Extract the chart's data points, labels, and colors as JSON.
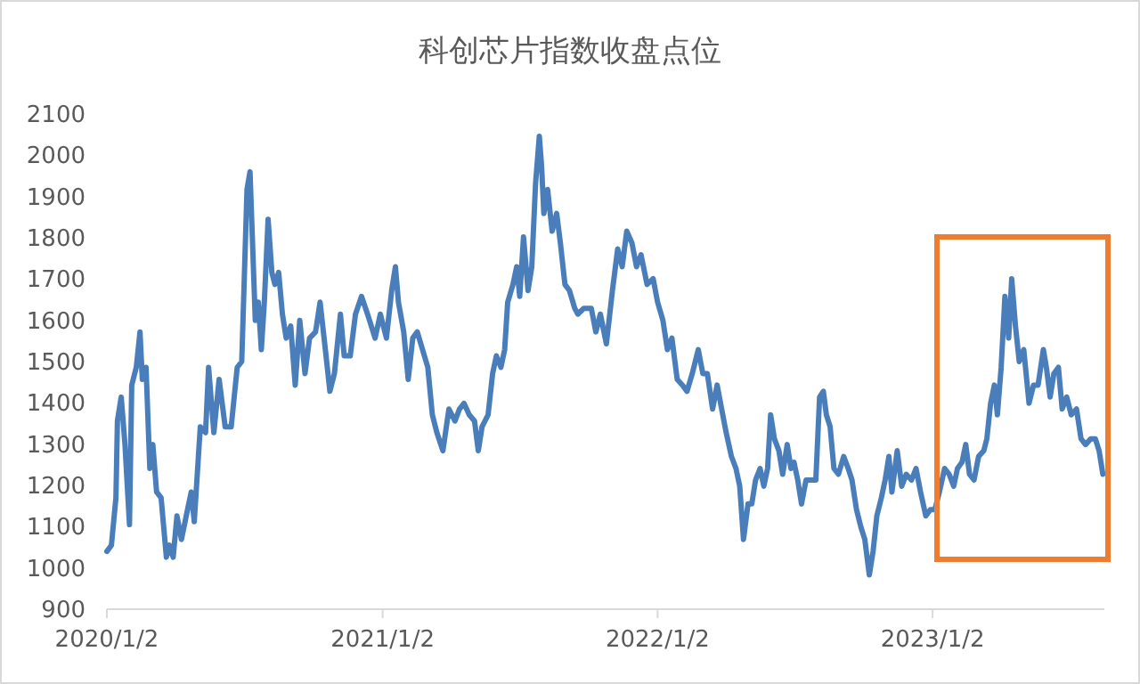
{
  "chart_data": {
    "type": "line",
    "title": "科创芯片指数收盘点位",
    "x": [
      "2020-01-02",
      "2020-01-08",
      "2020-01-14",
      "2020-01-16",
      "2020-01-21",
      "2020-01-26",
      "2020-02-01",
      "2020-02-04",
      "2020-02-10",
      "2020-02-15",
      "2020-02-18",
      "2020-02-23",
      "2020-02-28",
      "2020-03-03",
      "2020-03-08",
      "2020-03-14",
      "2020-03-21",
      "2020-03-25",
      "2020-03-30",
      "2020-04-04",
      "2020-04-10",
      "2020-04-18",
      "2020-04-23",
      "2020-04-27",
      "2020-05-05",
      "2020-05-12",
      "2020-05-16",
      "2020-05-23",
      "2020-05-30",
      "2020-06-07",
      "2020-06-15",
      "2020-06-23",
      "2020-06-29",
      "2020-07-06",
      "2020-07-10",
      "2020-07-17",
      "2020-07-21",
      "2020-07-25",
      "2020-07-29",
      "2020-08-03",
      "2020-08-08",
      "2020-08-12",
      "2020-08-17",
      "2020-08-22",
      "2020-08-27",
      "2020-09-02",
      "2020-09-08",
      "2020-09-14",
      "2020-09-21",
      "2020-09-27",
      "2020-10-05",
      "2020-10-11",
      "2020-10-18",
      "2020-10-24",
      "2020-10-30",
      "2020-11-07",
      "2020-11-12",
      "2020-11-20",
      "2020-11-27",
      "2020-12-05",
      "2020-12-13",
      "2020-12-23",
      "2020-12-30",
      "2021-01-07",
      "2021-01-14",
      "2021-01-19",
      "2021-01-23",
      "2021-01-30",
      "2021-02-05",
      "2021-02-11",
      "2021-02-17",
      "2021-02-24",
      "2021-03-03",
      "2021-03-09",
      "2021-03-15",
      "2021-03-23",
      "2021-03-31",
      "2021-04-08",
      "2021-04-14",
      "2021-04-20",
      "2021-04-27",
      "2021-05-04",
      "2021-05-09",
      "2021-05-14",
      "2021-05-22",
      "2021-05-28",
      "2021-06-02",
      "2021-06-08",
      "2021-06-13",
      "2021-06-17",
      "2021-06-24",
      "2021-06-29",
      "2021-07-03",
      "2021-07-08",
      "2021-07-14",
      "2021-07-19",
      "2021-07-24",
      "2021-07-29",
      "2021-08-01",
      "2021-08-04",
      "2021-08-09",
      "2021-08-15",
      "2021-08-21",
      "2021-08-26",
      "2021-09-01",
      "2021-09-07",
      "2021-09-14",
      "2021-09-18",
      "2021-09-26",
      "2021-10-06",
      "2021-10-12",
      "2021-10-18",
      "2021-10-26",
      "2021-11-03",
      "2021-11-10",
      "2021-11-16",
      "2021-11-22",
      "2021-11-29",
      "2021-12-05",
      "2021-12-11",
      "2021-12-19",
      "2021-12-27",
      "2022-01-02",
      "2022-01-09",
      "2022-01-15",
      "2022-01-21",
      "2022-01-28",
      "2022-02-04",
      "2022-02-10",
      "2022-02-17",
      "2022-02-25",
      "2022-03-03",
      "2022-03-09",
      "2022-03-16",
      "2022-03-22",
      "2022-03-28",
      "2022-04-03",
      "2022-04-10",
      "2022-04-16",
      "2022-04-21",
      "2022-04-26",
      "2022-05-02",
      "2022-05-07",
      "2022-05-12",
      "2022-05-18",
      "2022-05-23",
      "2022-05-28",
      "2022-06-01",
      "2022-06-06",
      "2022-06-12",
      "2022-06-17",
      "2022-06-23",
      "2022-06-28",
      "2022-07-02",
      "2022-07-07",
      "2022-07-12",
      "2022-07-18",
      "2022-07-25",
      "2022-07-31",
      "2022-08-05",
      "2022-08-10",
      "2022-08-14",
      "2022-08-19",
      "2022-08-24",
      "2022-08-30",
      "2022-09-06",
      "2022-09-12",
      "2022-09-17",
      "2022-09-23",
      "2022-09-29",
      "2022-10-04",
      "2022-10-10",
      "2022-10-15",
      "2022-10-20",
      "2022-10-26",
      "2022-10-31",
      "2022-11-05",
      "2022-11-09",
      "2022-11-16",
      "2022-11-22",
      "2022-11-28",
      "2022-12-05",
      "2022-12-11",
      "2022-12-17",
      "2022-12-24",
      "2022-12-30",
      "2023-01-05",
      "2023-01-11",
      "2023-01-18",
      "2023-01-24",
      "2023-01-30",
      "2023-02-04",
      "2023-02-10",
      "2023-02-15",
      "2023-02-20",
      "2023-02-26",
      "2023-03-04",
      "2023-03-11",
      "2023-03-15",
      "2023-03-20",
      "2023-03-25",
      "2023-03-29",
      "2023-04-03",
      "2023-04-08",
      "2023-04-13",
      "2023-04-17",
      "2023-04-22",
      "2023-04-27",
      "2023-05-03",
      "2023-05-10",
      "2023-05-16",
      "2023-05-22",
      "2023-05-29",
      "2023-06-02",
      "2023-06-07",
      "2023-06-12",
      "2023-06-18",
      "2023-06-23",
      "2023-06-29",
      "2023-07-05",
      "2023-07-12",
      "2023-07-18",
      "2023-07-24",
      "2023-07-31",
      "2023-08-06",
      "2023-08-11",
      "2023-08-16"
    ],
    "series": [
      {
        "color": "#4a7ebb",
        "values": [
          1040,
          1055,
          1170,
          1356,
          1414,
          1300,
          1105,
          1443,
          1486,
          1572,
          1457,
          1486,
          1241,
          1299,
          1184,
          1170,
          1026,
          1055,
          1026,
          1126,
          1069,
          1141,
          1184,
          1112,
          1342,
          1328,
          1486,
          1328,
          1457,
          1342,
          1342,
          1486,
          1500,
          1917,
          1960,
          1600,
          1644,
          1529,
          1644,
          1845,
          1716,
          1687,
          1716,
          1615,
          1557,
          1586,
          1443,
          1600,
          1471,
          1557,
          1572,
          1644,
          1529,
          1428,
          1471,
          1615,
          1514,
          1514,
          1615,
          1658,
          1615,
          1557,
          1615,
          1557,
          1672,
          1730,
          1644,
          1572,
          1457,
          1557,
          1572,
          1529,
          1486,
          1371,
          1328,
          1284,
          1385,
          1356,
          1385,
          1399,
          1371,
          1356,
          1284,
          1342,
          1371,
          1471,
          1514,
          1486,
          1529,
          1644,
          1687,
          1730,
          1658,
          1802,
          1672,
          1730,
          1931,
          2046,
          1974,
          1859,
          1917,
          1816,
          1859,
          1787,
          1687,
          1672,
          1629,
          1615,
          1629,
          1629,
          1572,
          1615,
          1543,
          1672,
          1773,
          1730,
          1816,
          1787,
          1730,
          1759,
          1687,
          1701,
          1644,
          1600,
          1529,
          1557,
          1457,
          1443,
          1428,
          1471,
          1529,
          1471,
          1471,
          1385,
          1443,
          1385,
          1328,
          1270,
          1241,
          1198,
          1069,
          1155,
          1155,
          1213,
          1241,
          1198,
          1241,
          1371,
          1313,
          1284,
          1227,
          1299,
          1241,
          1256,
          1213,
          1155,
          1213,
          1213,
          1213,
          1414,
          1428,
          1371,
          1342,
          1241,
          1227,
          1270,
          1241,
          1213,
          1141,
          1098,
          1069,
          983,
          1040,
          1126,
          1170,
          1213,
          1270,
          1184,
          1284,
          1198,
          1227,
          1213,
          1241,
          1184,
          1126,
          1141,
          1141,
          1184,
          1241,
          1227,
          1198,
          1241,
          1256,
          1299,
          1227,
          1213,
          1270,
          1284,
          1313,
          1399,
          1443,
          1371,
          1486,
          1658,
          1557,
          1701,
          1586,
          1500,
          1529,
          1399,
          1443,
          1443,
          1529,
          1486,
          1414,
          1471,
          1486,
          1385,
          1414,
          1371,
          1385,
          1313,
          1299,
          1313,
          1313,
          1284,
          1227
        ]
      }
    ],
    "xlim": [
      "2020-01-02",
      "2023-08-18"
    ],
    "xticks": [
      {
        "value": "2020-01-02",
        "label": "2020/1/2"
      },
      {
        "value": "2021-01-02",
        "label": "2021/1/2"
      },
      {
        "value": "2022-01-02",
        "label": "2022/1/2"
      },
      {
        "value": "2023-01-02",
        "label": "2023/1/2"
      }
    ],
    "ylim": [
      900,
      2100
    ],
    "yticks": [
      900,
      1000,
      1100,
      1200,
      1300,
      1400,
      1500,
      1600,
      1700,
      1800,
      1900,
      2000,
      2100
    ]
  }
}
